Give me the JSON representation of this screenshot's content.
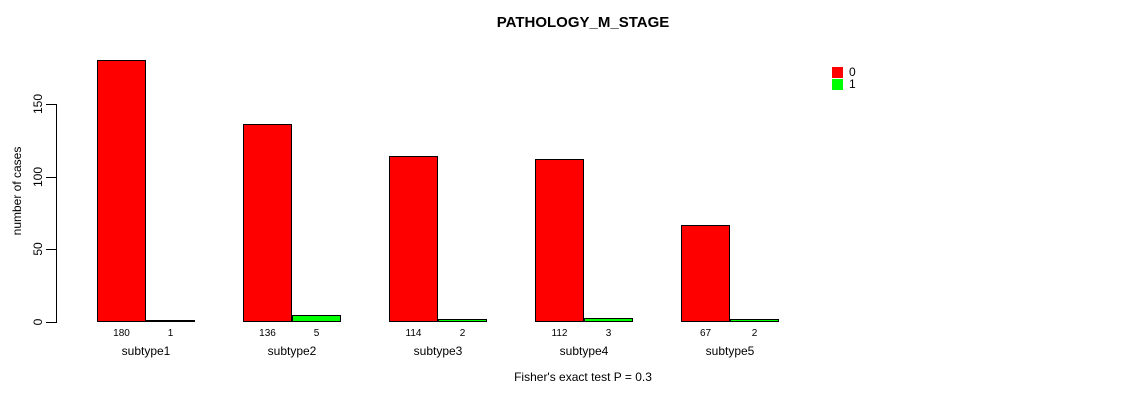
{
  "title": "PATHOLOGY_M_STAGE",
  "caption": "Fisher's exact test P = 0.3",
  "legend": {
    "items": [
      {
        "label": "0",
        "color": "#FF0000"
      },
      {
        "label": "1",
        "color": "#00FF00"
      }
    ]
  },
  "colors": {
    "series0": "#FF0000",
    "series1": "#00FF00",
    "axis": "#000000",
    "background": "#FFFFFF"
  },
  "chart_data": {
    "type": "bar",
    "title": "PATHOLOGY_M_STAGE",
    "categories": [
      "subtype1",
      "subtype2",
      "subtype3",
      "subtype4",
      "subtype5"
    ],
    "series": [
      {
        "name": "0",
        "color": "#FF0000",
        "values": [
          180,
          136,
          114,
          112,
          67
        ]
      },
      {
        "name": "1",
        "color": "#00FF00",
        "values": [
          1,
          5,
          2,
          3,
          2
        ]
      }
    ],
    "bar_value_labels": {
      "0": [
        "180",
        "136",
        "114",
        "112",
        "67"
      ],
      "1": [
        "1",
        "5",
        "2",
        "3",
        "2"
      ]
    },
    "xlabel": "",
    "ylabel": "number of cases",
    "ylim": [
      0,
      180
    ],
    "yticks": [
      0,
      50,
      100,
      150
    ],
    "grid": false,
    "legend_position": "top-right",
    "annotation": "Fisher's exact test P = 0.3"
  }
}
